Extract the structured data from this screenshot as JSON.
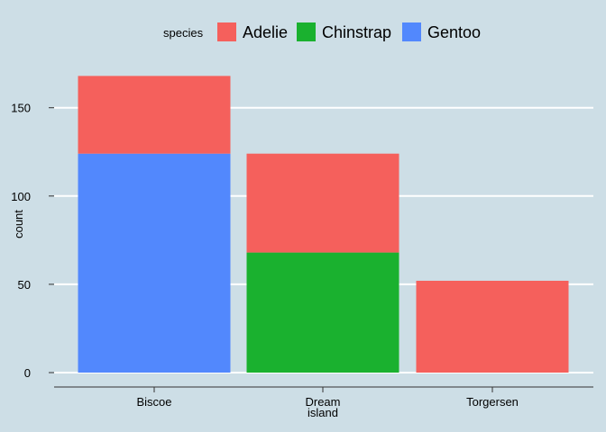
{
  "chart_data": {
    "type": "bar",
    "stacked": true,
    "categories": [
      "Biscoe",
      "Dream",
      "Torgersen"
    ],
    "category_display": [
      [
        "Biscoe"
      ],
      [
        "Dream"
      ],
      [
        "Torgersen"
      ]
    ],
    "series": [
      {
        "name": "Adelie",
        "values": [
          44,
          56,
          52
        ],
        "color": "#f5605c"
      },
      {
        "name": "Chinstrap",
        "values": [
          0,
          68,
          0
        ],
        "color": "#1ab12f"
      },
      {
        "name": "Gentoo",
        "values": [
          124,
          0,
          0
        ],
        "color": "#5288fd"
      }
    ],
    "stack_order_bottom_to_top": [
      "Gentoo",
      "Chinstrap",
      "Adelie"
    ],
    "xlabel": "island",
    "ylabel": "count",
    "ylim": [
      0,
      168
    ],
    "yticks": [
      0,
      50,
      100,
      150
    ],
    "legend_title": "species",
    "legend_position": "top",
    "grid": "horizontal major, white",
    "background_color": "#cddee6",
    "grid_color": "#ffffff"
  }
}
